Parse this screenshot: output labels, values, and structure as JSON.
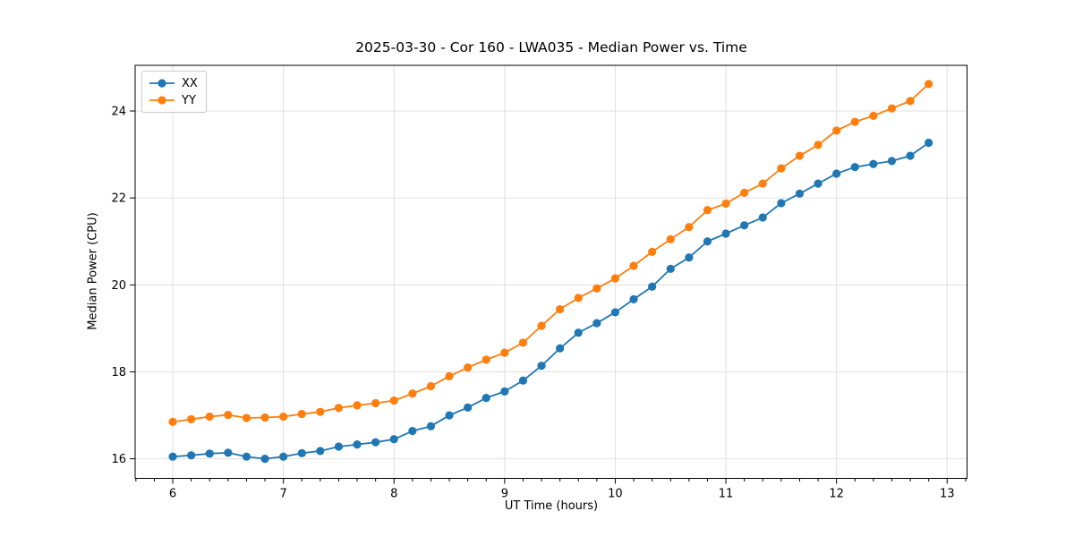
{
  "chart_data": {
    "type": "line",
    "title": "2025-03-30 - Cor 160 - LWA035 - Median Power vs. Time",
    "xlabel": "UT Time (hours)",
    "ylabel": "Median Power (CPU)",
    "x_ticks": [
      6,
      7,
      8,
      9,
      10,
      11,
      12,
      13
    ],
    "y_ticks": [
      16,
      18,
      20,
      22,
      24
    ],
    "xlim": [
      5.66,
      13.18
    ],
    "ylim": [
      15.55,
      25.05
    ],
    "x_minor_step": 0.16667,
    "grid": true,
    "legend_position": "upper left",
    "x": [
      6.0,
      6.1667,
      6.3333,
      6.5,
      6.6667,
      6.8333,
      7.0,
      7.1667,
      7.3333,
      7.5,
      7.6667,
      7.8333,
      8.0,
      8.1667,
      8.3333,
      8.5,
      8.6667,
      8.8333,
      9.0,
      9.1667,
      9.3333,
      9.5,
      9.6667,
      9.8333,
      10.0,
      10.1667,
      10.3333,
      10.5,
      10.6667,
      10.8333,
      11.0,
      11.1667,
      11.3333,
      11.5,
      11.6667,
      11.8333,
      12.0,
      12.1667,
      12.3333,
      12.5,
      12.6667,
      12.8333
    ],
    "series": [
      {
        "name": "XX",
        "color": "#1f77b4",
        "values": [
          16.05,
          16.08,
          16.12,
          16.14,
          16.05,
          16.0,
          16.05,
          16.13,
          16.18,
          16.28,
          16.33,
          16.38,
          16.45,
          16.64,
          16.75,
          17.0,
          17.18,
          17.4,
          17.55,
          17.8,
          18.14,
          18.54,
          18.9,
          19.12,
          19.37,
          19.67,
          19.96,
          20.37,
          20.63,
          21.0,
          21.18,
          21.37,
          21.55,
          21.88,
          22.1,
          22.33,
          22.56,
          22.71,
          22.78,
          22.85,
          22.97,
          23.27
        ]
      },
      {
        "name": "YY",
        "color": "#ff7f0e",
        "values": [
          16.85,
          16.91,
          16.97,
          17.01,
          16.94,
          16.95,
          16.97,
          17.03,
          17.08,
          17.17,
          17.23,
          17.28,
          17.34,
          17.5,
          17.67,
          17.9,
          18.1,
          18.28,
          18.44,
          18.67,
          19.06,
          19.44,
          19.7,
          19.92,
          20.15,
          20.44,
          20.76,
          21.05,
          21.33,
          21.72,
          21.87,
          22.12,
          22.33,
          22.68,
          22.97,
          23.22,
          23.55,
          23.75,
          23.89,
          24.06,
          24.23,
          24.62
        ]
      }
    ],
    "colors": {
      "grid": "#e0e0e0",
      "spine": "#000000",
      "background": "#ffffff"
    }
  }
}
